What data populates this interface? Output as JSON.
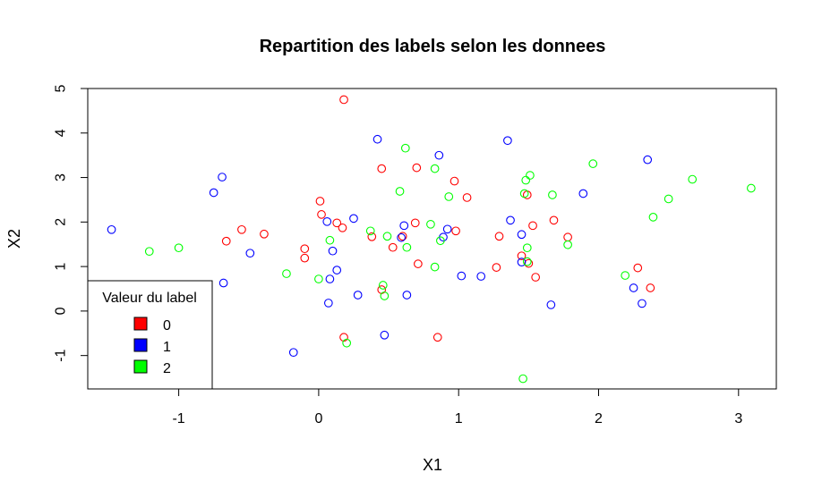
{
  "chart_data": {
    "type": "scatter",
    "title": "Repartition des labels selon les donnees",
    "xlabel": "X1",
    "ylabel": "X2",
    "xlim": [
      -1.65,
      3.27
    ],
    "ylim": [
      -1.75,
      5.0
    ],
    "x_ticks": [
      "-1",
      "0",
      "1",
      "2",
      "3"
    ],
    "y_ticks": [
      "-1",
      "0",
      "1",
      "2",
      "3",
      "4",
      "5"
    ],
    "grid": false,
    "legend": {
      "title": "Valeur du label",
      "placement": "bottom-left",
      "entries": [
        "0",
        "1",
        "2"
      ]
    },
    "colors": {
      "0": "#ff0000",
      "1": "#0000ff",
      "2": "#00ff00"
    },
    "series": [
      {
        "name": "0",
        "color": "#ff0000",
        "points": [
          [
            0.18,
            4.75
          ],
          [
            0.45,
            3.2
          ],
          [
            0.7,
            3.22
          ],
          [
            0.97,
            2.92
          ],
          [
            1.06,
            2.55
          ],
          [
            0.01,
            2.47
          ],
          [
            0.02,
            2.17
          ],
          [
            0.13,
            1.98
          ],
          [
            0.17,
            1.87
          ],
          [
            0.69,
            1.98
          ],
          [
            -0.55,
            1.83
          ],
          [
            -0.39,
            1.73
          ],
          [
            -0.66,
            1.57
          ],
          [
            -0.1,
            1.4
          ],
          [
            -0.1,
            1.19
          ],
          [
            0.38,
            1.67
          ],
          [
            0.53,
            1.43
          ],
          [
            0.6,
            1.68
          ],
          [
            0.71,
            1.06
          ],
          [
            0.98,
            1.8
          ],
          [
            1.29,
            1.68
          ],
          [
            1.27,
            0.98
          ],
          [
            1.45,
            1.24
          ],
          [
            1.49,
            2.61
          ],
          [
            1.53,
            1.92
          ],
          [
            1.68,
            2.04
          ],
          [
            1.5,
            1.07
          ],
          [
            1.55,
            0.76
          ],
          [
            1.78,
            1.66
          ],
          [
            2.28,
            0.97
          ],
          [
            2.37,
            0.52
          ],
          [
            0.45,
            0.48
          ],
          [
            0.18,
            -0.59
          ],
          [
            0.85,
            -0.59
          ]
        ]
      },
      {
        "name": "1",
        "color": "#0000ff",
        "points": [
          [
            -1.48,
            1.83
          ],
          [
            -0.69,
            3.01
          ],
          [
            -0.75,
            2.66
          ],
          [
            -0.68,
            0.63
          ],
          [
            -0.49,
            1.3
          ],
          [
            0.06,
            2.01
          ],
          [
            0.25,
            2.08
          ],
          [
            0.08,
            0.72
          ],
          [
            0.1,
            1.35
          ],
          [
            0.13,
            0.92
          ],
          [
            0.07,
            0.18
          ],
          [
            0.28,
            0.36
          ],
          [
            0.42,
            3.86
          ],
          [
            0.59,
            1.65
          ],
          [
            0.61,
            1.92
          ],
          [
            0.63,
            0.36
          ],
          [
            0.86,
            3.5
          ],
          [
            0.89,
            1.66
          ],
          [
            0.92,
            1.84
          ],
          [
            1.02,
            0.79
          ],
          [
            1.16,
            0.78
          ],
          [
            1.35,
            3.83
          ],
          [
            1.37,
            2.04
          ],
          [
            1.45,
            1.72
          ],
          [
            1.45,
            1.1
          ],
          [
            1.66,
            0.14
          ],
          [
            1.89,
            2.64
          ],
          [
            2.25,
            0.52
          ],
          [
            2.31,
            0.17
          ],
          [
            2.35,
            3.4
          ],
          [
            -0.18,
            -0.93
          ],
          [
            0.47,
            -0.54
          ]
        ]
      },
      {
        "name": "2",
        "color": "#00ff00",
        "points": [
          [
            -1.21,
            1.34
          ],
          [
            -1.0,
            1.42
          ],
          [
            -0.23,
            0.84
          ],
          [
            0.0,
            0.72
          ],
          [
            0.08,
            1.59
          ],
          [
            0.2,
            -0.72
          ],
          [
            0.37,
            1.8
          ],
          [
            0.46,
            0.58
          ],
          [
            0.47,
            0.34
          ],
          [
            0.49,
            1.68
          ],
          [
            0.58,
            2.69
          ],
          [
            0.62,
            3.66
          ],
          [
            0.63,
            1.43
          ],
          [
            0.8,
            1.95
          ],
          [
            0.83,
            3.2
          ],
          [
            0.83,
            0.99
          ],
          [
            0.87,
            1.58
          ],
          [
            0.93,
            2.57
          ],
          [
            1.47,
            2.64
          ],
          [
            1.48,
            2.94
          ],
          [
            1.51,
            3.05
          ],
          [
            1.49,
            1.42
          ],
          [
            1.49,
            1.11
          ],
          [
            1.67,
            2.61
          ],
          [
            1.78,
            1.49
          ],
          [
            1.96,
            3.31
          ],
          [
            2.19,
            0.8
          ],
          [
            2.39,
            2.11
          ],
          [
            2.5,
            2.52
          ],
          [
            2.67,
            2.96
          ],
          [
            3.09,
            2.76
          ],
          [
            1.46,
            -1.52
          ]
        ]
      }
    ]
  }
}
